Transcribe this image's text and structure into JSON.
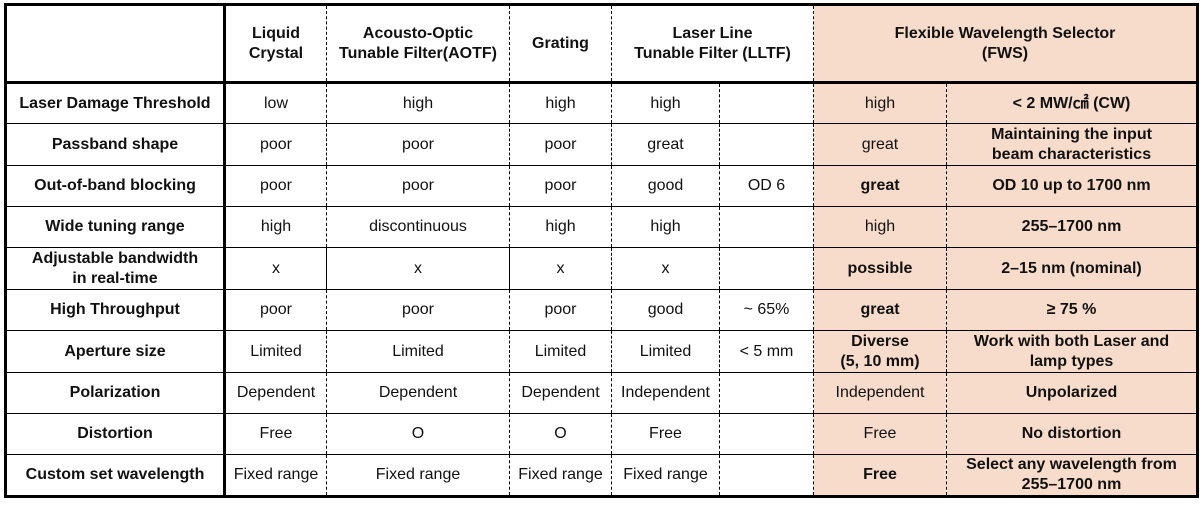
{
  "headers": {
    "blank": "",
    "lc": [
      "Liquid",
      "Crystal"
    ],
    "aotf": [
      "Acousto-Optic",
      "Tunable Filter(AOTF)"
    ],
    "grating": [
      "Grating"
    ],
    "lltf": [
      "Laser Line",
      "Tunable Filter (LLTF)"
    ],
    "fws": [
      "Flexible Wavelength Selector",
      "(FWS)"
    ]
  },
  "rows": [
    {
      "label": [
        "Laser Damage Threshold"
      ],
      "lc": "low",
      "aotf": "high",
      "grating": "high",
      "lltf": "high",
      "lltf_note": "",
      "fws": "high",
      "fws_spec": [
        "< 2 MW/㎠ (CW)"
      ],
      "red": false
    },
    {
      "label": [
        "Passband shape"
      ],
      "lc": "poor",
      "aotf": "poor",
      "grating": "poor",
      "lltf": "great",
      "lltf_note": "",
      "fws": "great",
      "fws_spec": [
        "Maintaining the input",
        "beam characteristics"
      ],
      "red": false
    },
    {
      "label": [
        "Out-of-band blocking"
      ],
      "lc": "poor",
      "aotf": "poor",
      "grating": "poor",
      "lltf": "good",
      "lltf_note": "OD 6",
      "fws": "great",
      "fws_spec": [
        "OD 10 up to 1700 nm"
      ],
      "red": true
    },
    {
      "label": [
        "Wide tuning range"
      ],
      "lc": "high",
      "aotf": "discontinuous",
      "grating": "high",
      "lltf": "high",
      "lltf_note": "",
      "fws": "high",
      "fws_spec": [
        "255–1700 nm"
      ],
      "red": false
    },
    {
      "label": [
        "Adjustable bandwidth",
        "in real-time"
      ],
      "lc": "x",
      "aotf": "x",
      "grating": "x",
      "lltf": "x",
      "lltf_note": "",
      "fws": "possible",
      "fws_spec": [
        "2–15 nm (nominal)"
      ],
      "red": true
    },
    {
      "label": [
        "High Throughput"
      ],
      "lc": "poor",
      "aotf": "poor",
      "grating": "poor",
      "lltf": "good",
      "lltf_note": "~ 65%",
      "fws": "great",
      "fws_spec": [
        "≥ 75 %"
      ],
      "red": true
    },
    {
      "label": [
        "Aperture size"
      ],
      "lc": "Limited",
      "aotf": "Limited",
      "grating": "Limited",
      "lltf": "Limited",
      "lltf_note": "< 5 mm",
      "fws": [
        "Diverse",
        "(5, 10 mm)"
      ],
      "fws_spec": [
        "Work with both Laser and",
        "lamp types"
      ],
      "red": true
    },
    {
      "label": [
        "Polarization"
      ],
      "lc": "Dependent",
      "aotf": "Dependent",
      "grating": "Dependent",
      "lltf": "Independent",
      "lltf_note": "",
      "fws": "Independent",
      "fws_spec": [
        "Unpolarized"
      ],
      "red": false
    },
    {
      "label": [
        "Distortion"
      ],
      "lc": "Free",
      "aotf": "O",
      "grating": "O",
      "lltf": "Free",
      "lltf_note": "",
      "fws": "Free",
      "fws_spec": [
        "No distortion"
      ],
      "red": false
    },
    {
      "label": [
        "Custom set wavelength"
      ],
      "lc": "Fixed range",
      "aotf": "Fixed range",
      "grating": "Fixed range",
      "lltf": "Fixed range",
      "lltf_note": "",
      "fws": "Free",
      "fws_spec": [
        "Select any wavelength from",
        "255–1700 nm"
      ],
      "red": true
    }
  ],
  "colors": {
    "fws_background": "#f8dccb",
    "highlight_text": "#e8181b",
    "border": "#000000"
  }
}
